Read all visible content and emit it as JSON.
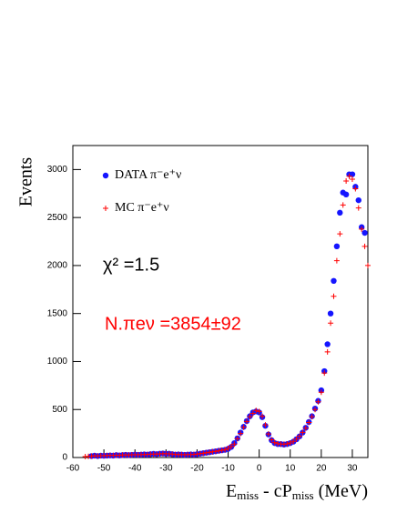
{
  "chart_data": {
    "type": "scatter",
    "y_label": "Events",
    "x_label_parts": [
      {
        "text": "E"
      },
      {
        "text": "miss",
        "sub": true
      },
      {
        "text": " - cP"
      },
      {
        "text": "miss",
        "sub": true
      },
      {
        "text": " (MeV)"
      }
    ],
    "annotations": [
      {
        "text": "χ² =1.5",
        "color": "#000000"
      },
      {
        "text": "N.πeν =3854±92",
        "color": "#ff0000"
      }
    ],
    "xlim": [
      -60,
      35
    ],
    "ylim": [
      0,
      3250
    ],
    "xticks": [
      -60,
      -50,
      -40,
      -30,
      -20,
      -10,
      0,
      10,
      20,
      30
    ],
    "yticks": [
      0,
      500,
      1000,
      1500,
      2000,
      2500,
      3000
    ],
    "series": [
      {
        "name": "DATA π⁻e⁺ν",
        "color": "#1515ff",
        "marker": "dot",
        "x": [
          -54,
          -53,
          -52,
          -51,
          -50,
          -49,
          -48,
          -47,
          -46,
          -45,
          -44,
          -43,
          -42,
          -41,
          -40,
          -39,
          -38,
          -37,
          -36,
          -35,
          -34,
          -33,
          -32,
          -31,
          -30,
          -29,
          -28,
          -27,
          -26,
          -25,
          -24,
          -23,
          -22,
          -21,
          -20,
          -19,
          -18,
          -17,
          -16,
          -15,
          -14,
          -13,
          -12,
          -11,
          -10,
          -9,
          -8,
          -7,
          -6,
          -5,
          -4,
          -3,
          -2,
          -1,
          0,
          1,
          2,
          3,
          4,
          5,
          6,
          7,
          8,
          9,
          10,
          11,
          12,
          13,
          14,
          15,
          16,
          17,
          18,
          19,
          20,
          21,
          22,
          23,
          24,
          25,
          26,
          27,
          28,
          29,
          30,
          31,
          32,
          33,
          34
        ],
        "values": [
          15,
          20,
          15,
          20,
          18,
          20,
          22,
          20,
          25,
          22,
          25,
          28,
          25,
          28,
          30,
          28,
          30,
          32,
          30,
          35,
          38,
          35,
          40,
          42,
          38,
          40,
          35,
          30,
          32,
          30,
          28,
          30,
          32,
          30,
          35,
          40,
          45,
          50,
          55,
          60,
          65,
          70,
          75,
          80,
          90,
          110,
          150,
          200,
          260,
          320,
          380,
          430,
          470,
          480,
          470,
          420,
          330,
          240,
          180,
          150,
          140,
          140,
          135,
          140,
          150,
          165,
          190,
          220,
          260,
          310,
          370,
          430,
          510,
          590,
          700,
          900,
          1180,
          1500,
          1840,
          2200,
          2550,
          2760,
          2740,
          2950,
          2950,
          2820,
          2680,
          2400,
          2340
        ]
      },
      {
        "name": "MC π⁻e⁺ν",
        "color": "#ff0000",
        "marker": "cross",
        "x": [
          -56,
          -55,
          -54,
          -53,
          -52,
          -51,
          -50,
          -49,
          -48,
          -47,
          -46,
          -45,
          -44,
          -43,
          -42,
          -41,
          -40,
          -39,
          -38,
          -37,
          -36,
          -35,
          -34,
          -33,
          -32,
          -31,
          -30,
          -29,
          -28,
          -27,
          -26,
          -25,
          -24,
          -23,
          -22,
          -21,
          -20,
          -19,
          -18,
          -17,
          -16,
          -15,
          -14,
          -13,
          -12,
          -11,
          -10,
          -9,
          -8,
          -7,
          -6,
          -5,
          -4,
          -3,
          -2,
          -1,
          0,
          1,
          2,
          3,
          4,
          5,
          6,
          7,
          8,
          9,
          10,
          11,
          12,
          13,
          14,
          15,
          16,
          17,
          18,
          19,
          20,
          21,
          22,
          23,
          24,
          25,
          26,
          27,
          28,
          29,
          30,
          31,
          32,
          33,
          34,
          35
        ],
        "values": [
          10,
          12,
          14,
          18,
          16,
          19,
          20,
          21,
          22,
          22,
          24,
          23,
          26,
          27,
          26,
          29,
          30,
          29,
          31,
          31,
          32,
          34,
          36,
          36,
          38,
          40,
          39,
          38,
          36,
          32,
          31,
          31,
          29,
          31,
          31,
          32,
          36,
          40,
          44,
          50,
          54,
          60,
          64,
          70,
          76,
          82,
          95,
          115,
          140,
          195,
          250,
          315,
          375,
          425,
          460,
          490,
          480,
          430,
          340,
          245,
          185,
          155,
          145,
          140,
          138,
          142,
          152,
          168,
          192,
          222,
          262,
          305,
          365,
          425,
          500,
          580,
          680,
          880,
          1100,
          1400,
          1680,
          2050,
          2330,
          2630,
          2880,
          2930,
          2900,
          2800,
          2600,
          2380,
          2200,
          2000
        ]
      }
    ]
  }
}
